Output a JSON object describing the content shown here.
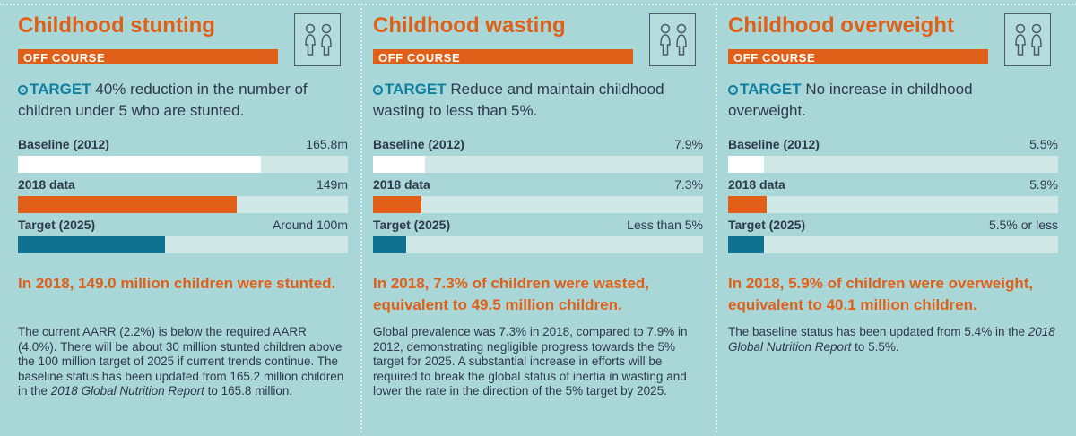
{
  "panels": [
    {
      "title": "Childhood stunting",
      "status": "OFF COURSE",
      "target_label": "TARGET",
      "target_text": "40% reduction in the number of children under 5 who are stunted.",
      "rows": [
        {
          "label": "Baseline (2012)",
          "value_text": "165.8m"
        },
        {
          "label": "2018 data",
          "value_text": "149m"
        },
        {
          "label": "Target (2025)",
          "value_text": "Around 100m"
        }
      ],
      "finding": "In 2018, 149.0 million children were stunted.",
      "body_parts": [
        "The current AARR (2.2%) is below the required AARR (4.0%). There will be about 30 million stunted children above the 100 million target of 2025 if current trends continue. The baseline status has been updated from 165.2 million children in the ",
        "2018 Global Nutrition Report",
        " to 165.8 million."
      ]
    },
    {
      "title": "Childhood wasting",
      "status": "OFF COURSE",
      "target_label": "TARGET",
      "target_text": "Reduce and maintain childhood wasting to less than 5%.",
      "rows": [
        {
          "label": "Baseline (2012)",
          "value_text": "7.9%"
        },
        {
          "label": "2018 data",
          "value_text": "7.3%"
        },
        {
          "label": "Target (2025)",
          "value_text": "Less than 5%"
        }
      ],
      "finding": "In 2018, 7.3% of children were wasted, equivalent to 49.5 million children.",
      "body_parts": [
        "Global prevalence was 7.3% in 2018, compared to 7.9% in 2012, demonstrating negligible progress towards the 5% target for 2025. A substantial increase in efforts will be required to break the global status of inertia in wasting and lower the rate in the direction of the 5% target by 2025.",
        "",
        ""
      ]
    },
    {
      "title": "Childhood overweight",
      "status": "OFF COURSE",
      "target_label": "TARGET",
      "target_text": "No increase in childhood overweight.",
      "rows": [
        {
          "label": "Baseline (2012)",
          "value_text": "5.5%"
        },
        {
          "label": "2018 data",
          "value_text": "5.9%"
        },
        {
          "label": "Target (2025)",
          "value_text": "5.5% or less"
        }
      ],
      "finding": "In 2018, 5.9% of children were overweight, equivalent to 40.1 million children.",
      "body_parts": [
        "The baseline status has been updated from 5.4% in the ",
        "2018 Global Nutrition Report",
        " to 5.5%."
      ]
    }
  ],
  "chart_data": [
    {
      "type": "bar",
      "categories": [
        "Baseline (2012)",
        "2018 data",
        "Target (2025)"
      ],
      "values": [
        165.8,
        149,
        100
      ],
      "unit": "m",
      "xlim": [
        0,
        225
      ]
    },
    {
      "type": "bar",
      "categories": [
        "Baseline (2012)",
        "2018 data",
        "Target (2025)"
      ],
      "values": [
        7.9,
        7.3,
        5
      ],
      "unit": "%",
      "xlim": [
        0,
        50
      ]
    },
    {
      "type": "bar",
      "categories": [
        "Baseline (2012)",
        "2018 data",
        "Target (2025)"
      ],
      "values": [
        5.5,
        5.9,
        5.5
      ],
      "unit": "%",
      "xlim": [
        0,
        50
      ]
    }
  ],
  "colors": {
    "background": "#a9d6d6",
    "accent_orange": "#e0601a",
    "target_teal": "#0e7190",
    "baseline_white": "#ffffff",
    "track": "#cfe8e6"
  },
  "icons": [
    "two-children-icon",
    "target-icon"
  ]
}
